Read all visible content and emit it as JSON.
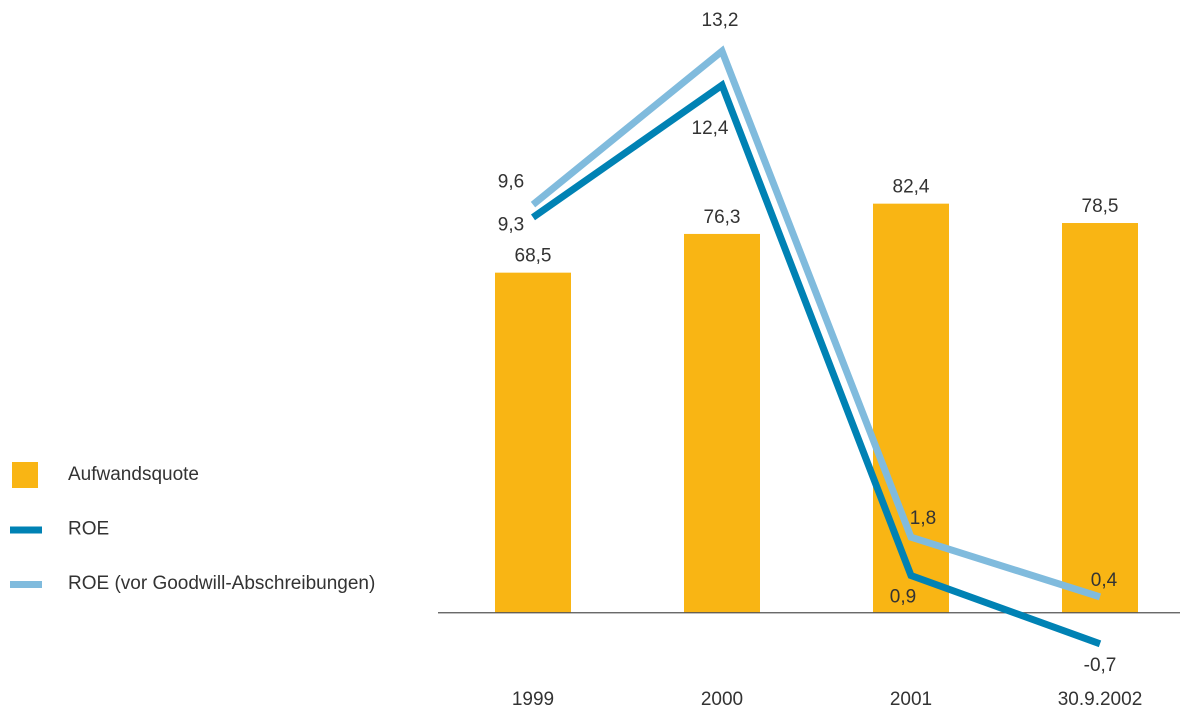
{
  "chart_data": {
    "type": "bar",
    "categories": [
      "1999",
      "2000",
      "2001",
      "30.9.2002"
    ],
    "ylim": [
      -20,
      120
    ],
    "y2lim": [
      -2.3,
      14
    ],
    "legend": "left",
    "series": [
      {
        "name": "Aufwandsquote",
        "type": "bar",
        "color": "#F9B514",
        "values": [
          68.5,
          76.3,
          82.4,
          78.5
        ],
        "value_labels": [
          "68,5",
          "76,3",
          "82,4",
          "78,5"
        ]
      },
      {
        "name": "ROE",
        "type": "line",
        "axis": "y2",
        "color": "#0082B4",
        "values": [
          9.3,
          12.4,
          0.9,
          -0.7
        ],
        "value_labels": [
          "9,3",
          "12,4",
          "0,9",
          "-0,7"
        ]
      },
      {
        "name": "ROE (vor Goodwill-Abschreibungen)",
        "type": "line",
        "axis": "y2",
        "color": "#80BBDD",
        "values": [
          9.6,
          13.2,
          1.8,
          0.4
        ],
        "value_labels": [
          "9,6",
          "13,2",
          "1,8",
          "0,4"
        ]
      }
    ]
  }
}
